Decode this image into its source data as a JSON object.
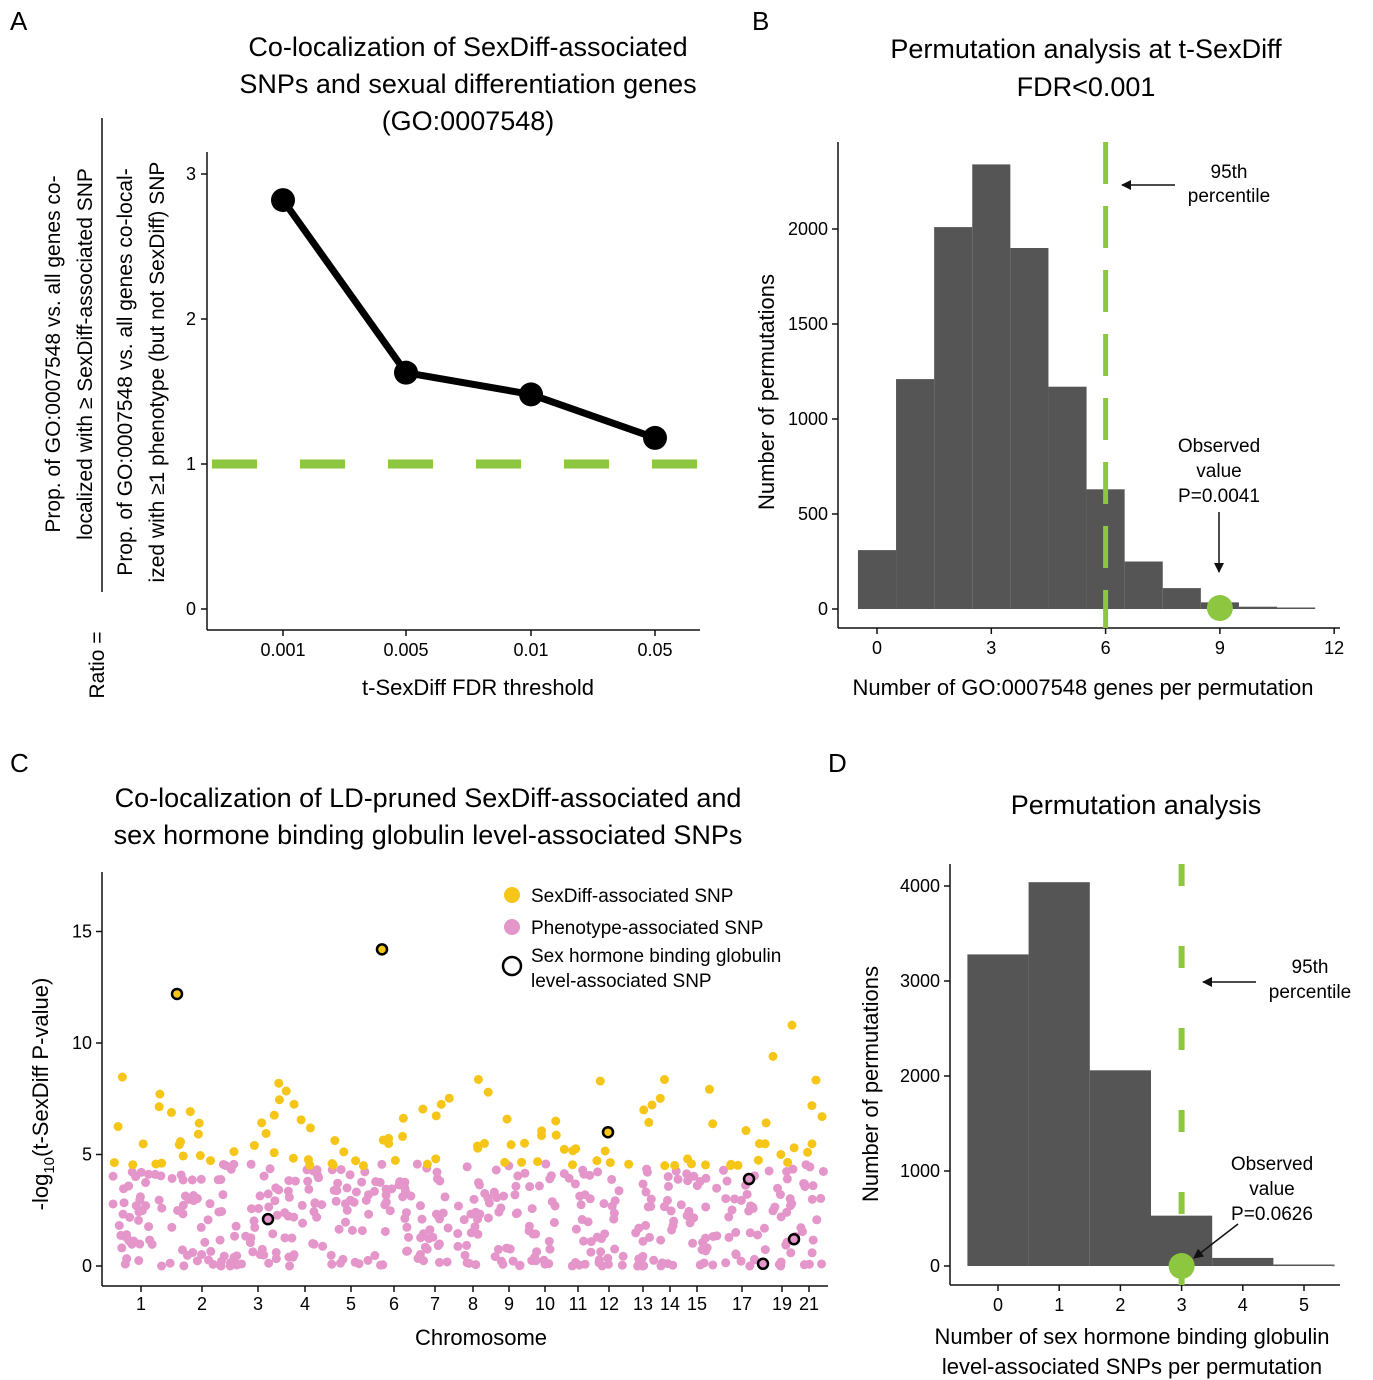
{
  "panels": {
    "A": {
      "letter": "A",
      "title_lines": [
        "Co-localization of SexDiff-associated",
        "SNPs and sexual differentiation genes",
        "(GO:0007548)"
      ],
      "ylabel_prefix": "Ratio =",
      "ylabel_num_lines": [
        "Prop. of GO:0007548 vs. all genes co-",
        "localized with ≥ SexDiff-associated SNP"
      ],
      "ylabel_den_lines": [
        "Prop. of GO:0007548 vs. all genes co-local-",
        "ized with ≥1 phenotype (but not SexDiff) SNP"
      ],
      "xlabel": "t-SexDiff FDR threshold",
      "chart_data": {
        "type": "line",
        "categories": [
          "0.001",
          "0.005",
          "0.01",
          "0.05"
        ],
        "values": [
          2.82,
          1.63,
          1.48,
          1.18
        ],
        "reference_line": {
          "y": 1,
          "style": "dashed",
          "color": "#8dc63f"
        },
        "ylim": [
          0,
          3.2
        ],
        "yticks": [
          0,
          1,
          2,
          3
        ],
        "color": "#000000"
      }
    },
    "B": {
      "letter": "B",
      "title_lines": [
        "Permutation analysis at t-SexDiff",
        "FDR<0.001"
      ],
      "ylabel": "Number of permutations",
      "xlabel": "Number of GO:0007548 genes per permutation",
      "annotation_95": [
        "95th",
        "percentile"
      ],
      "annotation_obs": [
        "Observed",
        "value",
        "P=0.0041"
      ],
      "chart_data": {
        "type": "bar",
        "x": [
          0,
          1,
          2,
          3,
          4,
          5,
          6,
          7,
          8,
          9,
          10,
          11
        ],
        "values": [
          310,
          1210,
          2010,
          2340,
          1900,
          1170,
          630,
          250,
          110,
          35,
          12,
          3
        ],
        "xticks": [
          0,
          3,
          6,
          9,
          12
        ],
        "yticks": [
          0,
          500,
          1000,
          1500,
          2000
        ],
        "xlim": [
          -0.5,
          12
        ],
        "ylim": [
          0,
          2450
        ],
        "percentile_95": 6,
        "observed": 9,
        "bar_color": "#555555",
        "accent_color": "#8dc63f"
      }
    },
    "C": {
      "letter": "C",
      "title_lines": [
        "Co-localization of LD-pruned SexDiff-associated and",
        "sex hormone binding globulin level-associated SNPs"
      ],
      "ylabel_main": "-log",
      "ylabel_sub": "10",
      "ylabel_rest": "(t-SexDiff P-value)",
      "xlabel": "Chromosome",
      "legend": [
        {
          "label": "SexDiff-associated SNP",
          "color": "#f5c518"
        },
        {
          "label": "Phenotype-associated SNP",
          "color": "#e495c9"
        },
        {
          "label_lines": [
            "Sex hormone binding globulin",
            "level-associated SNP"
          ],
          "color": "#000000"
        }
      ],
      "chart_data": {
        "type": "scatter",
        "chromosome_labels": [
          "1",
          "2",
          "3",
          "4",
          "5",
          "6",
          "7",
          "8",
          "9",
          "10",
          "11",
          "12",
          "13",
          "14",
          "15",
          "17",
          "19",
          "21"
        ],
        "yticks": [
          0,
          5,
          10,
          15
        ],
        "ylim": [
          -0.5,
          17.5
        ],
        "sexdiff_threshold": 4.5,
        "highlighted_points": [
          {
            "chromosome": "1",
            "y": 12.2,
            "type": "sexdiff"
          },
          {
            "chromosome": "6",
            "y": 14.2,
            "type": "sexdiff"
          },
          {
            "chromosome": "12",
            "y": 6.0,
            "type": "sexdiff"
          },
          {
            "chromosome": "3",
            "y": 2.1,
            "type": "phenotype"
          },
          {
            "chromosome": "17",
            "y": 3.9,
            "type": "phenotype"
          },
          {
            "chromosome": "19",
            "y": 0.1,
            "type": "phenotype"
          },
          {
            "chromosome": "20",
            "y": 1.2,
            "type": "phenotype"
          }
        ],
        "colors": {
          "sexdiff": "#f5c518",
          "phenotype": "#e495c9"
        }
      }
    },
    "D": {
      "letter": "D",
      "title_lines": [
        "Permutation analysis"
      ],
      "ylabel": "Number of permutations",
      "xlabel_lines": [
        "Number of sex hormone binding globulin",
        "level-associated SNPs per permutation"
      ],
      "annotation_95": [
        "95th",
        "percentile"
      ],
      "annotation_obs": [
        "Observed",
        "value",
        "P=0.0626"
      ],
      "chart_data": {
        "type": "bar",
        "x": [
          0,
          1,
          2,
          3,
          4,
          5
        ],
        "values": [
          3280,
          4040,
          2060,
          530,
          85,
          8
        ],
        "xticks": [
          0,
          1,
          2,
          3,
          4,
          5
        ],
        "yticks": [
          0,
          1000,
          2000,
          3000,
          4000
        ],
        "xlim": [
          -0.5,
          5.5
        ],
        "ylim": [
          0,
          4100
        ],
        "percentile_95": 3,
        "observed": 3,
        "bar_color": "#555555",
        "accent_color": "#8dc63f"
      }
    }
  }
}
